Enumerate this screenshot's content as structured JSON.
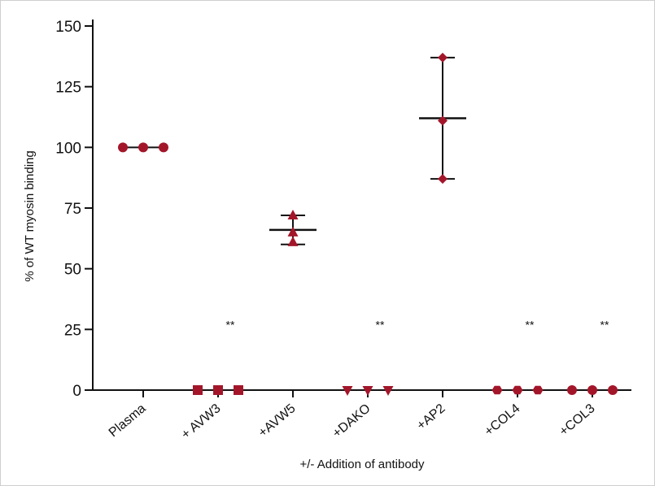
{
  "chart_data": {
    "type": "scatter",
    "xlabel": "+/- Addition of antibody",
    "ylabel": "% of WT myosin binding",
    "ylim": [
      0,
      150
    ],
    "yticks": [
      0,
      25,
      50,
      75,
      100,
      125,
      150
    ],
    "categories": [
      "Plasma",
      "+ AVW3",
      "+AVW5",
      "+DAKO",
      "+AP2",
      "+COL4",
      "+COL3"
    ],
    "groups": [
      {
        "category": "Plasma",
        "marker": "circle",
        "points": [
          100,
          100,
          100
        ],
        "mean": 100,
        "err_low": 100,
        "err_high": 100,
        "significance": ""
      },
      {
        "category": "+ AVW3",
        "marker": "square",
        "points": [
          0,
          0,
          0
        ],
        "mean": 0,
        "err_low": 0,
        "err_high": 0,
        "significance": "**"
      },
      {
        "category": "+AVW5",
        "marker": "triangle-up",
        "points": [
          72,
          65,
          61
        ],
        "mean": 66,
        "err_low": 60,
        "err_high": 72,
        "significance": ""
      },
      {
        "category": "+DAKO",
        "marker": "triangle-down",
        "points": [
          0,
          0,
          0
        ],
        "mean": 0,
        "err_low": 0,
        "err_high": 0,
        "significance": "**"
      },
      {
        "category": "+AP2",
        "marker": "diamond",
        "points": [
          137,
          111,
          87
        ],
        "mean": 112,
        "err_low": 87,
        "err_high": 137,
        "significance": ""
      },
      {
        "category": "+COL4",
        "marker": "hexagon",
        "points": [
          0,
          0,
          0
        ],
        "mean": 0,
        "err_low": 0,
        "err_high": 0,
        "significance": "**"
      },
      {
        "category": "+COL3",
        "marker": "circle",
        "points": [
          0,
          0,
          0
        ],
        "mean": 0,
        "err_low": 0,
        "err_high": 0,
        "significance": "**"
      }
    ],
    "grid": false,
    "legend": "none",
    "colors": {
      "marker": "#a3162a",
      "axis": "#111111",
      "errorbar": "#111111"
    }
  }
}
